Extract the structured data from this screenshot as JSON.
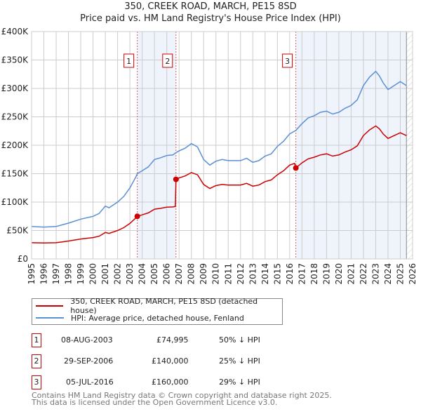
{
  "chart_data": {
    "type": "line",
    "title": "350, CREEK ROAD, MARCH, PE15 8SD",
    "subtitle": "Price paid vs. HM Land Registry's House Price Index (HPI)",
    "xlim": [
      1995,
      2026
    ],
    "ylim": [
      0,
      400000
    ],
    "x_ticks": [
      "1995",
      "1996",
      "1997",
      "1998",
      "1999",
      "2000",
      "2001",
      "2002",
      "2003",
      "2004",
      "2005",
      "2006",
      "2007",
      "2008",
      "2009",
      "2010",
      "2011",
      "2012",
      "2013",
      "2014",
      "2015",
      "2016",
      "2017",
      "2018",
      "2019",
      "2020",
      "2021",
      "2022",
      "2023",
      "2024",
      "2025",
      "2026"
    ],
    "y_ticks": [
      {
        "v": 0,
        "label": "£0"
      },
      {
        "v": 50000,
        "label": "£50K"
      },
      {
        "v": 100000,
        "label": "£100K"
      },
      {
        "v": 150000,
        "label": "£150K"
      },
      {
        "v": 200000,
        "label": "£200K"
      },
      {
        "v": 250000,
        "label": "£250K"
      },
      {
        "v": 300000,
        "label": "£300K"
      },
      {
        "v": 350000,
        "label": "£350K"
      },
      {
        "v": 400000,
        "label": "£400K"
      }
    ],
    "grid": true,
    "series": [
      {
        "name": "350, CREEK ROAD, MARCH, PE15 8SD (detached house)",
        "color": "#cc0000",
        "x": [
          1995,
          1996,
          1997,
          1997.5,
          1998,
          1999,
          2000,
          2000.5,
          2001,
          2001.3,
          2002,
          2002.5,
          2003,
          2003.5,
          2003.6,
          2004,
          2004.5,
          2005,
          2005.5,
          2006,
          2006.5,
          2006.7,
          2006.75,
          2007,
          2007.5,
          2008,
          2008.5,
          2009,
          2009.5,
          2010,
          2010.5,
          2011,
          2012,
          2012.5,
          2013,
          2013.5,
          2014,
          2014.5,
          2015,
          2015.5,
          2016,
          2016.4,
          2016.5,
          2017,
          2017.5,
          2018,
          2018.5,
          2019,
          2019.5,
          2020,
          2020.5,
          2021,
          2021.5,
          2022,
          2022.5,
          2023,
          2023.3,
          2023.6,
          2024,
          2024.5,
          2025,
          2025.5
        ],
        "y": [
          28500,
          28000,
          28500,
          30000,
          31500,
          35000,
          37500,
          40000,
          46500,
          45000,
          50000,
          55000,
          62500,
          72500,
          75000,
          77500,
          81000,
          87500,
          89000,
          91000,
          91500,
          92500,
          140000,
          142500,
          146000,
          152000,
          148000,
          131000,
          124000,
          129000,
          131000,
          130000,
          130000,
          133000,
          128000,
          130000,
          136000,
          139000,
          148000,
          155000,
          165000,
          168000,
          160000,
          169000,
          176000,
          179000,
          183000,
          185000,
          181000,
          183000,
          188000,
          192000,
          199000,
          217000,
          227000,
          234000,
          229000,
          220000,
          212000,
          217000,
          222000,
          217000
        ]
      },
      {
        "name": "HPI: Average price, detached house, Fenland",
        "color": "#5b8fd4",
        "x": [
          1995,
          1996,
          1997,
          1997.5,
          1998,
          1999,
          2000,
          2000.5,
          2001,
          2001.3,
          2002,
          2002.5,
          2003,
          2003.5,
          2003.6,
          2004,
          2004.5,
          2005,
          2005.5,
          2006,
          2006.5,
          2006.75,
          2007,
          2007.5,
          2008,
          2008.5,
          2009,
          2009.5,
          2010,
          2010.5,
          2011,
          2012,
          2012.5,
          2013,
          2013.5,
          2014,
          2014.5,
          2015,
          2015.5,
          2016,
          2016.5,
          2017,
          2017.5,
          2018,
          2018.5,
          2019,
          2019.5,
          2020,
          2020.5,
          2021,
          2021.5,
          2022,
          2022.5,
          2023,
          2023.3,
          2023.6,
          2024,
          2024.5,
          2025,
          2025.5
        ],
        "y": [
          57000,
          56000,
          57000,
          60000,
          63000,
          70000,
          75000,
          80000,
          93000,
          90000,
          100000,
          110000,
          125000,
          145000,
          150000,
          155000,
          162000,
          175000,
          178000,
          182000,
          183000,
          187000,
          190000,
          195000,
          203000,
          197000,
          175000,
          165000,
          172000,
          175000,
          173000,
          173000,
          177000,
          170000,
          173000,
          181000,
          185000,
          198000,
          207000,
          220000,
          226000,
          238000,
          248000,
          252000,
          258000,
          260000,
          255000,
          258000,
          265000,
          270000,
          280000,
          305000,
          320000,
          330000,
          322000,
          310000,
          298000,
          305000,
          312000,
          305000
        ]
      }
    ],
    "sales": [
      {
        "n": "1",
        "x": 2003.6,
        "price": 74995,
        "date": "08-AUG-2003",
        "price_label": "£74,995",
        "hpi_label": "50% ↓ HPI"
      },
      {
        "n": "2",
        "x": 2006.75,
        "price": 140000,
        "date": "29-SEP-2006",
        "price_label": "£140,000",
        "hpi_label": "25% ↓ HPI"
      },
      {
        "n": "3",
        "x": 2016.5,
        "price": 160000,
        "date": "05-JUL-2016",
        "price_label": "£160,000",
        "hpi_label": "29% ↓ HPI"
      }
    ],
    "shaded_ranges": [
      [
        2003.6,
        2006.75
      ],
      [
        2016.5,
        2025.5
      ]
    ],
    "forecast_hatch_from": 2025.5
  },
  "footer": {
    "line1": "Contains HM Land Registry data © Crown copyright and database right 2025.",
    "line2": "This data is licensed under the Open Government Licence v3.0."
  }
}
